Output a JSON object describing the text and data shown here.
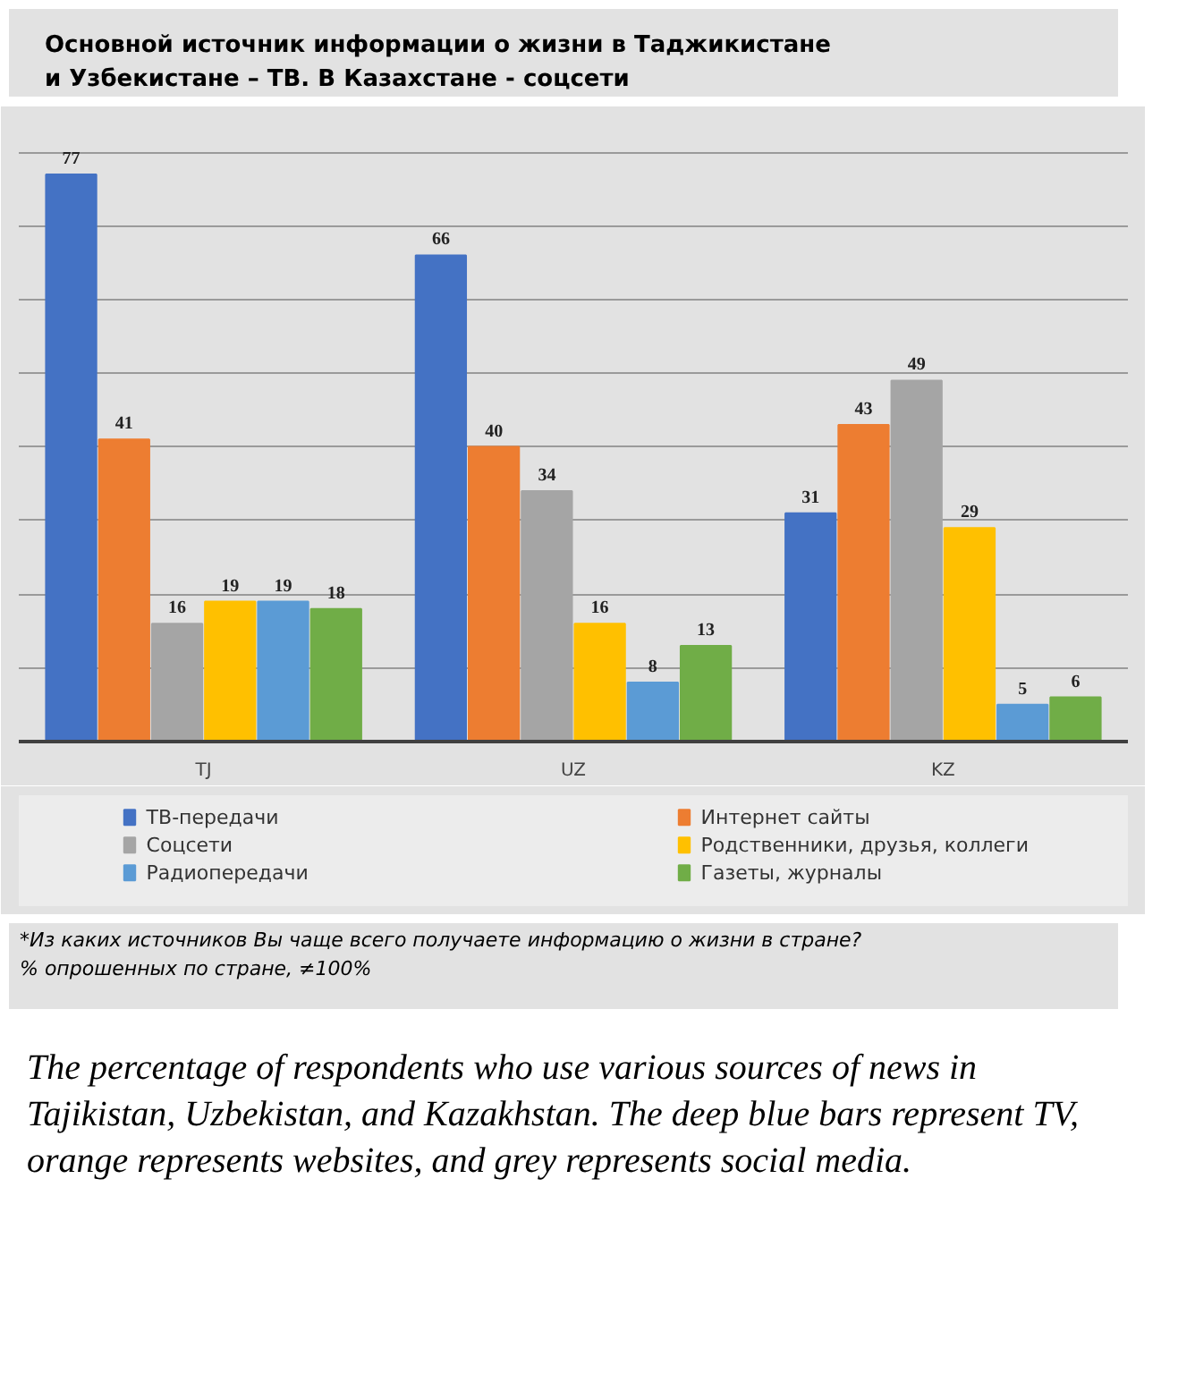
{
  "chart_data": {
    "type": "bar",
    "title": "Основной источник информации о жизни в Таджикистане\nи Узбекистане – ТВ. В Казахстане - соцсети",
    "categories": [
      "TJ",
      "UZ",
      "KZ"
    ],
    "series": [
      {
        "name": "ТВ-передачи",
        "color": "#4472c4",
        "values": [
          77,
          66,
          31
        ]
      },
      {
        "name": "Интернет сайты",
        "color": "#ed7d31",
        "values": [
          41,
          40,
          43
        ]
      },
      {
        "name": "Соцсети",
        "color": "#a5a5a5",
        "values": [
          16,
          34,
          49
        ]
      },
      {
        "name": "Родственники, друзья, коллеги",
        "color": "#ffc000",
        "values": [
          19,
          16,
          29
        ]
      },
      {
        "name": "Радиопередачи",
        "color": "#5b9bd5",
        "values": [
          19,
          8,
          5
        ]
      },
      {
        "name": "Газеты, журналы",
        "color": "#70ad47",
        "values": [
          18,
          13,
          6
        ]
      }
    ],
    "ylim": [
      0,
      85
    ],
    "yticks": [
      {
        "value": 0,
        "label": null
      },
      {
        "value": 10,
        "label": null
      },
      {
        "value": 20,
        "label": null
      },
      {
        "value": 30,
        "label": null
      },
      {
        "value": 40,
        "label": null
      },
      {
        "value": 50,
        "label": null
      },
      {
        "value": 60,
        "label": null
      },
      {
        "value": 70,
        "label": null
      },
      {
        "value": 80,
        "label": null
      }
    ],
    "tick_labels": "x",
    "grid": "y",
    "legend": "bottom",
    "data_labels": true,
    "annotations": [
      "*Из каких источников Вы чаще всего получаете информацию о жизни в стране?",
      "% опрошенных по стране, ≠100%",
      "The percentage of respondents who use various sources of news in Tajikistan, Uzbekistan, and Kazakhstan. The deep blue bars represent TV, orange represents websites, and grey represents social media."
    ]
  }
}
